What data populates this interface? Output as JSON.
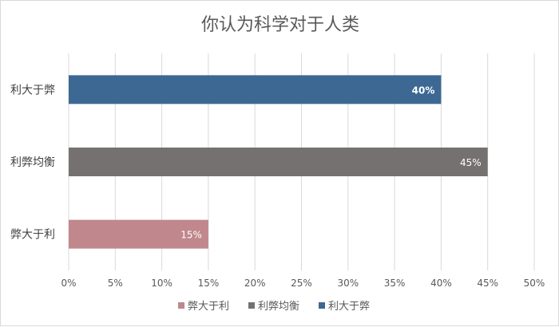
{
  "chart_data": {
    "type": "bar",
    "orientation": "horizontal",
    "title": "你认为科学对于人类",
    "categories": [
      "利大于弊",
      "利弊均衡",
      "弊大于利"
    ],
    "values": [
      40,
      45,
      15
    ],
    "value_labels": [
      "40%",
      "45%",
      "15%"
    ],
    "bar_colors": [
      "#3c6893",
      "#767171",
      "#c0878c"
    ],
    "label_colors": [
      "#ffffff",
      "#ffffff",
      "#ffffff"
    ],
    "xlim": [
      0,
      50
    ],
    "xticks": [
      "0%",
      "5%",
      "10%",
      "15%",
      "20%",
      "25%",
      "30%",
      "35%",
      "40%",
      "45%",
      "50%"
    ],
    "grid": "vertical",
    "legend": {
      "placement": "bottom",
      "items": [
        {
          "label": "弊大于利",
          "color": "#c0878c"
        },
        {
          "label": "利弊均衡",
          "color": "#767171"
        },
        {
          "label": "利大于弊",
          "color": "#3c6893"
        }
      ]
    }
  }
}
